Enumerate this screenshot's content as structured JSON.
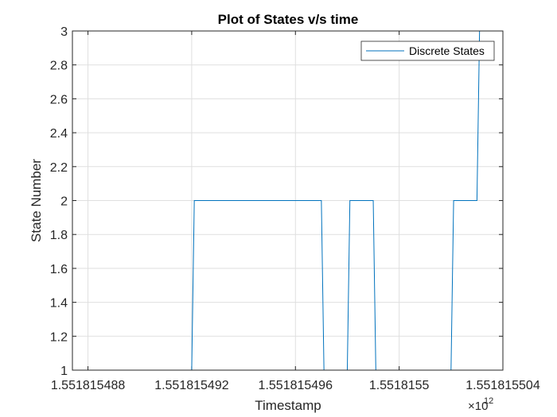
{
  "chart_data": {
    "type": "line",
    "title": "Plot of States v/s time",
    "xlabel": "Timestamp",
    "ylabel": "State Number",
    "x_exponent_base": "×10",
    "x_exponent_power": "12",
    "xlim": [
      1.5518154874,
      1.551815504
    ],
    "ylim": [
      1,
      3
    ],
    "xticks": [
      1.551815488,
      1.551815492,
      1.551815496,
      1.5518155,
      1.551815504
    ],
    "xtick_labels": [
      "1.551815488",
      "1.551815492",
      "1.551815496",
      "1.5518155",
      "1.551815504"
    ],
    "yticks": [
      1,
      1.2,
      1.4,
      1.6,
      1.8,
      2,
      2.2,
      2.4,
      2.6,
      2.8,
      3
    ],
    "ytick_labels": [
      "1",
      "1.2",
      "1.4",
      "1.6",
      "1.8",
      "2",
      "2.2",
      "2.4",
      "2.6",
      "2.8",
      "3"
    ],
    "grid": true,
    "legend_position": "top-right",
    "series": [
      {
        "name": "Discrete States",
        "color": "#0072BD",
        "step": true,
        "x": [
          1.5518154875,
          1.551815492,
          1.5518154921,
          1.551815497,
          1.5518154971,
          1.551815498,
          1.5518154981,
          1.551815499,
          1.5518154991,
          1.551815502,
          1.5518155021,
          1.551815503,
          1.5518155031,
          1.551815504
        ],
        "y": [
          1,
          1,
          2,
          2,
          1,
          1,
          2,
          2,
          1,
          1,
          2,
          2,
          3,
          3
        ]
      }
    ]
  }
}
